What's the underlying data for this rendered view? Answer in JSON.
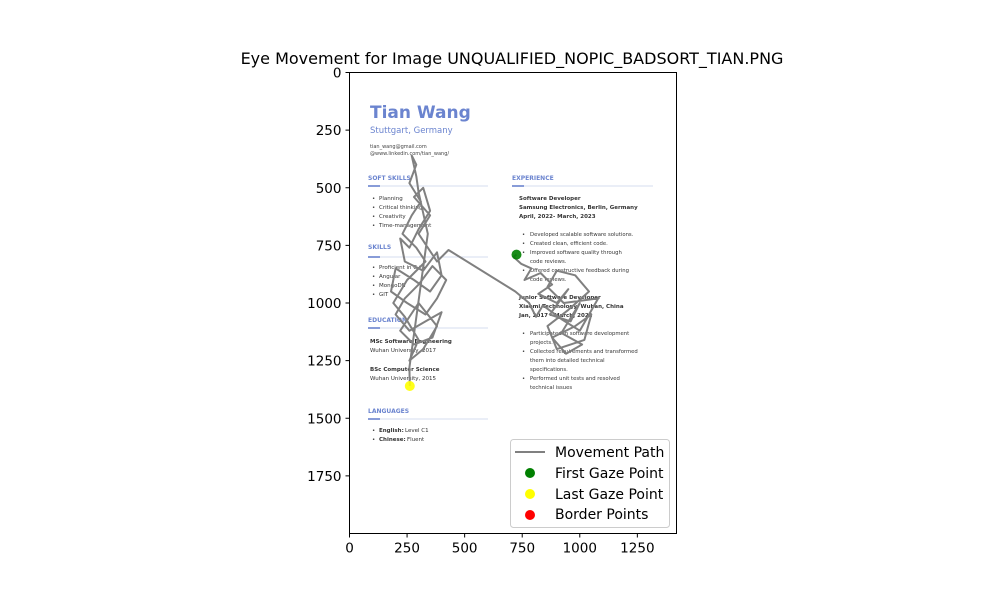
{
  "chart_data": {
    "type": "scatter",
    "title": "Eye Movement for Image UNQUALIFIED_NOPIC_BADSORT_TIAN.PNG",
    "xlabel": "",
    "ylabel": "",
    "xlim": [
      0,
      1420
    ],
    "ylim": [
      2000,
      0
    ],
    "x_ticks": [
      "0",
      "250",
      "500",
      "750",
      "1000",
      "1250"
    ],
    "y_ticks": [
      "0",
      "250",
      "500",
      "750",
      "1000",
      "1250",
      "1500",
      "1750"
    ],
    "grid": false,
    "legend_position": "lower-right",
    "background_image": {
      "name": "Tian Wang",
      "location": "Stuttgart, Germany",
      "email": "tian_wang@gmail.com",
      "linkedin": "@www.linkedin.com/tian_wang/",
      "sections": {
        "soft_skills": {
          "heading": "SOFT SKILLS",
          "items": [
            "Planning",
            "Critical thinking",
            "Creativity",
            "Time-management"
          ]
        },
        "skills": {
          "heading": "SKILLS",
          "items": [
            "Proficient in C++",
            "Angular",
            "MongoDB",
            "GIT"
          ]
        },
        "education": {
          "heading": "EDUCATION",
          "lines": [
            "MSc Software Engineering",
            "Wuhan University, 2017",
            "BSc Computer Science",
            "Wuhan University, 2015"
          ]
        },
        "languages": {
          "heading": "LANGUAGES",
          "items": [
            [
              "English:",
              "Level C1"
            ],
            [
              "Chinese:",
              "Fluent"
            ]
          ]
        },
        "experience": {
          "heading": "EXPERIENCE",
          "job1": [
            "Software Developer",
            "Samsung Electronics, Berlin, Germany",
            "April, 2022- March, 2023"
          ],
          "job1_bullets": [
            "Developed scalable software solutions.",
            "Created clean, efficient code.",
            "Improved software quality through",
            "code reviews.",
            "Offered constructive feedback during",
            "code reviews."
          ],
          "job2": [
            "Junior Software Developer",
            "Xiaomi Technology, Wuhan, China",
            "Jan, 2017 - March, 2022"
          ],
          "job2_bullets": [
            "Participated in software development",
            "projects.",
            "Collected requirements and transformed",
            "them into detailed technical",
            "specifications.",
            "Performed unit tests and resolved",
            "technical issues"
          ]
        }
      }
    },
    "series": [
      {
        "name": "Movement Path",
        "color": "#808080"
      },
      {
        "name": "First Gaze Point",
        "color": "#008000",
        "points": [
          [
            725,
            790
          ]
        ]
      },
      {
        "name": "Last Gaze Point",
        "color": "#ffff00",
        "points": [
          [
            262,
            1360
          ]
        ]
      },
      {
        "name": "Border Points",
        "color": "#ff0000",
        "points": []
      }
    ],
    "path": [
      [
        725,
        790
      ],
      [
        712,
        800
      ],
      [
        745,
        830
      ],
      [
        790,
        850
      ],
      [
        760,
        900
      ],
      [
        830,
        870
      ],
      [
        880,
        920
      ],
      [
        820,
        960
      ],
      [
        900,
        1000
      ],
      [
        950,
        940
      ],
      [
        870,
        1050
      ],
      [
        960,
        1080
      ],
      [
        1000,
        1000
      ],
      [
        920,
        1130
      ],
      [
        1010,
        1180
      ],
      [
        940,
        1220
      ],
      [
        880,
        1150
      ],
      [
        980,
        1100
      ],
      [
        1050,
        1050
      ],
      [
        1020,
        1160
      ],
      [
        900,
        1200
      ],
      [
        860,
        1100
      ],
      [
        950,
        1030
      ],
      [
        1040,
        950
      ],
      [
        980,
        880
      ],
      [
        900,
        860
      ],
      [
        860,
        930
      ],
      [
        930,
        1000
      ],
      [
        1080,
        980
      ],
      [
        1000,
        1120
      ],
      [
        920,
        1070
      ],
      [
        840,
        1010
      ],
      [
        810,
        1060
      ],
      [
        780,
        1000
      ],
      [
        720,
        950
      ],
      [
        430,
        770
      ],
      [
        380,
        820
      ],
      [
        300,
        700
      ],
      [
        350,
        620
      ],
      [
        280,
        540
      ],
      [
        320,
        500
      ],
      [
        350,
        600
      ],
      [
        300,
        680
      ],
      [
        260,
        760
      ],
      [
        220,
        720
      ],
      [
        240,
        820
      ],
      [
        320,
        860
      ],
      [
        380,
        780
      ],
      [
        400,
        880
      ],
      [
        350,
        950
      ],
      [
        280,
        900
      ],
      [
        200,
        850
      ],
      [
        180,
        950
      ],
      [
        250,
        1000
      ],
      [
        330,
        1050
      ],
      [
        380,
        980
      ],
      [
        420,
        900
      ],
      [
        360,
        840
      ],
      [
        300,
        920
      ],
      [
        240,
        980
      ],
      [
        200,
        1050
      ],
      [
        260,
        1120
      ],
      [
        330,
        1080
      ],
      [
        400,
        1040
      ],
      [
        360,
        1150
      ],
      [
        280,
        1180
      ],
      [
        220,
        1120
      ],
      [
        300,
        1000
      ],
      [
        380,
        1100
      ],
      [
        320,
        1200
      ],
      [
        260,
        1250
      ],
      [
        300,
        1160
      ],
      [
        240,
        1060
      ],
      [
        190,
        1000
      ],
      [
        250,
        900
      ],
      [
        330,
        820
      ],
      [
        290,
        760
      ],
      [
        230,
        700
      ],
      [
        270,
        620
      ],
      [
        310,
        560
      ],
      [
        260,
        480
      ],
      [
        290,
        400
      ],
      [
        270,
        360
      ],
      [
        290,
        450
      ],
      [
        300,
        520
      ],
      [
        340,
        700
      ],
      [
        260,
        1280
      ],
      [
        262,
        1360
      ]
    ]
  },
  "legend": {
    "movement_path": "Movement Path",
    "first_gaze": "First Gaze Point",
    "last_gaze": "Last Gaze Point",
    "border_points": "Border Points"
  }
}
